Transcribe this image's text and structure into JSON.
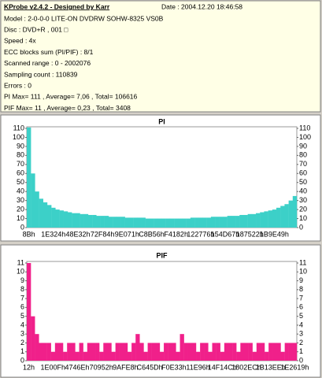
{
  "info": {
    "title": "KProbe v2.4.2 - Designed by Karr",
    "date": "Date : 2004.12.20 18:46:58",
    "lines": [
      "Model : 2-0-0-0 LITE-ON DVDRW SOHW-8325  VS0B",
      "Disc : DVD+R , 001 □",
      "Speed : 4x",
      "ECC blocks sum (PI/PIF) : 8/1",
      "Scanned range : 0 - 2002076",
      "Sampling count : 110839",
      "Errors : 0",
      "PI Max= 111 , Average= 7,06 , Total= 106616",
      "PIF Max= 11 , Average= 0,23 , Total= 3408"
    ]
  },
  "chart_data": [
    {
      "type": "bar",
      "title": "PI",
      "color": "#3cd0c8",
      "categories": [
        "8Bh",
        null,
        null,
        null,
        null,
        null,
        "1E324h",
        null,
        null,
        null,
        null,
        null,
        "48E32h",
        null,
        null,
        null,
        null,
        null,
        "72F84h",
        null,
        null,
        null,
        null,
        null,
        "9E071h",
        null,
        null,
        null,
        null,
        null,
        "C8B56h",
        null,
        null,
        null,
        null,
        null,
        "F4182h",
        null,
        null,
        null,
        null,
        null,
        "122776h",
        null,
        null,
        null,
        null,
        null,
        "154D67h",
        null,
        null,
        null,
        null,
        null,
        "187522h",
        null,
        null,
        null,
        null,
        null,
        "1B9E49h",
        null,
        null,
        null,
        null,
        null
      ],
      "values": [
        111,
        60,
        40,
        32,
        28,
        25,
        22,
        20,
        19,
        18,
        17,
        16,
        16,
        15,
        15,
        14,
        14,
        13,
        13,
        13,
        12,
        12,
        12,
        12,
        11,
        11,
        11,
        11,
        11,
        10,
        10,
        10,
        10,
        10,
        10,
        10,
        10,
        10,
        10,
        10,
        11,
        11,
        11,
        11,
        11,
        12,
        12,
        12,
        12,
        13,
        13,
        13,
        14,
        14,
        15,
        15,
        16,
        17,
        18,
        19,
        20,
        22,
        24,
        26,
        30,
        35
      ],
      "ylim": [
        0,
        110
      ],
      "yticks": [
        0,
        10,
        20,
        30,
        40,
        50,
        60,
        70,
        80,
        90,
        100,
        110
      ],
      "grid": false
    },
    {
      "type": "bar",
      "title": "PIF",
      "color": "#f0208a",
      "categories": [
        "12h",
        null,
        null,
        null,
        null,
        null,
        "1E00Fh",
        null,
        null,
        null,
        null,
        null,
        "4746Eh",
        null,
        null,
        null,
        null,
        null,
        "70952h",
        null,
        null,
        null,
        null,
        null,
        "9AFE8h",
        null,
        null,
        null,
        null,
        null,
        "C645Dh",
        null,
        null,
        null,
        null,
        null,
        "F0E33h",
        null,
        null,
        null,
        null,
        null,
        "11E96h",
        null,
        null,
        null,
        null,
        null,
        "14F14Ch",
        null,
        null,
        null,
        null,
        null,
        "1802ECh",
        null,
        null,
        null,
        null,
        null,
        "1B13EEh",
        null,
        null,
        null,
        null,
        null,
        "1E2619h"
      ],
      "values": [
        11,
        5,
        3,
        2,
        2,
        2,
        1,
        2,
        2,
        1,
        2,
        2,
        1,
        2,
        1,
        2,
        2,
        2,
        1,
        2,
        2,
        1,
        2,
        2,
        2,
        1,
        2,
        3,
        2,
        1,
        2,
        2,
        2,
        1,
        2,
        2,
        2,
        1,
        3,
        2,
        2,
        2,
        1,
        2,
        2,
        1,
        2,
        2,
        1,
        2,
        2,
        2,
        1,
        2,
        2,
        2,
        1,
        2,
        2,
        1,
        2,
        2,
        2,
        1,
        2,
        2,
        2
      ],
      "ylim": [
        0,
        11
      ],
      "yticks": [
        0,
        1,
        2,
        3,
        4,
        5,
        6,
        7,
        8,
        9,
        10,
        11
      ],
      "grid": false
    }
  ]
}
